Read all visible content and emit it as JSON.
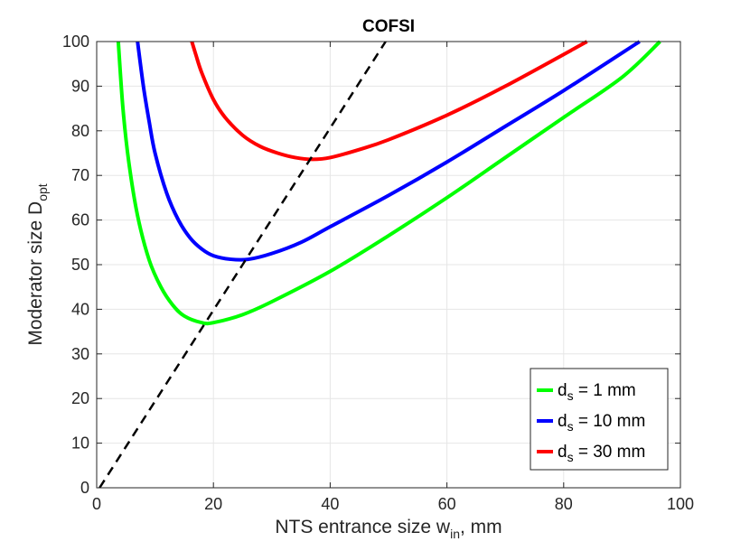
{
  "chart_data": {
    "type": "line",
    "title": "COFSI",
    "xlabel": {
      "main": "NTS entrance size w",
      "sub": "in",
      "suffix": ", mm"
    },
    "ylabel": {
      "main": "Moderator size D",
      "sub": "opt"
    },
    "xlim": [
      0,
      100
    ],
    "ylim": [
      0,
      100
    ],
    "xticks": [
      0,
      20,
      40,
      60,
      80,
      100
    ],
    "yticks": [
      0,
      10,
      20,
      30,
      40,
      50,
      60,
      70,
      80,
      90,
      100
    ],
    "grid": true,
    "legend_position": "bottom-right",
    "series": [
      {
        "name": "d_s = 1 mm",
        "legend": {
          "pre": "d",
          "sub": "s",
          "post": " = 1 mm"
        },
        "color": "#00ff00",
        "x": [
          3.7,
          4.5,
          5.5,
          7,
          9,
          11,
          13,
          15,
          18,
          20,
          25,
          30,
          40,
          50,
          60,
          70,
          80,
          90,
          96.5
        ],
        "y": [
          100,
          85,
          73,
          61,
          51,
          45,
          41,
          38.5,
          37,
          37,
          38.8,
          41.7,
          48.5,
          56.5,
          65,
          74,
          83,
          92,
          100
        ]
      },
      {
        "name": "d_s = 10 mm",
        "legend": {
          "pre": "d",
          "sub": "s",
          "post": " = 10 mm"
        },
        "color": "#0000ff",
        "x": [
          7,
          8,
          9,
          10,
          12,
          14,
          16,
          18,
          20,
          23,
          26,
          30,
          35,
          40,
          50,
          60,
          70,
          80,
          93
        ],
        "y": [
          100,
          90,
          82,
          75,
          66,
          60,
          56,
          53.5,
          52,
          51.2,
          51.2,
          52.5,
          55,
          58.5,
          65.5,
          73,
          81,
          89,
          100
        ]
      },
      {
        "name": "d_s = 30 mm",
        "legend": {
          "pre": "d",
          "sub": "s",
          "post": " = 30 mm"
        },
        "color": "#ff0000",
        "x": [
          16.3,
          17,
          18,
          20,
          22,
          25,
          28,
          31,
          34,
          37,
          40,
          45,
          50,
          60,
          70,
          84
        ],
        "y": [
          100,
          97,
          93,
          87,
          83,
          79,
          76.5,
          75,
          74,
          73.6,
          74,
          75.8,
          78,
          83.5,
          90,
          100
        ]
      },
      {
        "name": "dashed reference",
        "color": "#000000",
        "dashed": true,
        "x": [
          0.5,
          49.5
        ],
        "y": [
          0,
          100
        ]
      }
    ]
  }
}
